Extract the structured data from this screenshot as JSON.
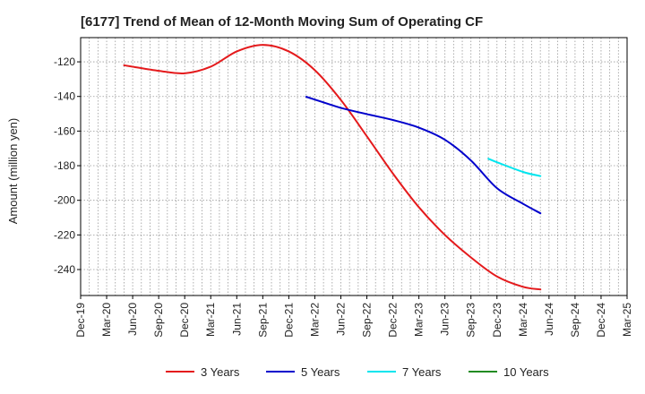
{
  "chart_data": {
    "type": "line",
    "title": "[6177]  Trend of Mean of 12-Month Moving Sum of Operating CF",
    "xlabel": "",
    "ylabel": "Amount (million yen)",
    "ylim": [
      -255,
      -106
    ],
    "yticks": [
      -120,
      -140,
      -160,
      -180,
      -200,
      -220,
      -240
    ],
    "categories": [
      "Dec-19",
      "Mar-20",
      "Jun-20",
      "Sep-20",
      "Dec-20",
      "Mar-21",
      "Jun-21",
      "Sep-21",
      "Dec-21",
      "Mar-22",
      "Jun-22",
      "Sep-22",
      "Dec-22",
      "Mar-23",
      "Jun-23",
      "Sep-23",
      "Dec-23",
      "Mar-24",
      "Jun-24",
      "Sep-24",
      "Dec-24",
      "Mar-25"
    ],
    "grid": true,
    "series": [
      {
        "name": "3 Years",
        "color": "#e41a1c",
        "points": [
          {
            "x": 1.67,
            "y": -122
          },
          {
            "x": 2,
            "y": -122.8
          },
          {
            "x": 3,
            "y": -125.2
          },
          {
            "x": 4,
            "y": -126.6
          },
          {
            "x": 5,
            "y": -122.8
          },
          {
            "x": 6,
            "y": -114.0
          },
          {
            "x": 7,
            "y": -110.2
          },
          {
            "x": 8,
            "y": -114.0
          },
          {
            "x": 9,
            "y": -124.8
          },
          {
            "x": 10,
            "y": -142.0
          },
          {
            "x": 11,
            "y": -163.0
          },
          {
            "x": 12,
            "y": -184.5
          },
          {
            "x": 13,
            "y": -204.0
          },
          {
            "x": 14,
            "y": -220.0
          },
          {
            "x": 15,
            "y": -233.0
          },
          {
            "x": 16,
            "y": -244.0
          },
          {
            "x": 17,
            "y": -250.0
          },
          {
            "x": 17.67,
            "y": -251.5
          }
        ]
      },
      {
        "name": "5 Years",
        "color": "#0000cc",
        "points": [
          {
            "x": 8.67,
            "y": -140.2
          },
          {
            "x": 9,
            "y": -141.8
          },
          {
            "x": 10,
            "y": -146.6
          },
          {
            "x": 11,
            "y": -150.2
          },
          {
            "x": 12,
            "y": -153.6
          },
          {
            "x": 13,
            "y": -158.0
          },
          {
            "x": 14,
            "y": -165.0
          },
          {
            "x": 15,
            "y": -177.0
          },
          {
            "x": 16,
            "y": -193.0
          },
          {
            "x": 17,
            "y": -202.0
          },
          {
            "x": 17.67,
            "y": -207.5
          }
        ]
      },
      {
        "name": "7 Years",
        "color": "#00e5ee",
        "points": [
          {
            "x": 15.67,
            "y": -176.0
          },
          {
            "x": 16,
            "y": -178.0
          },
          {
            "x": 17,
            "y": -183.6
          },
          {
            "x": 17.67,
            "y": -186.0
          }
        ]
      },
      {
        "name": "10 Years",
        "color": "#228b22",
        "points": []
      }
    ]
  }
}
